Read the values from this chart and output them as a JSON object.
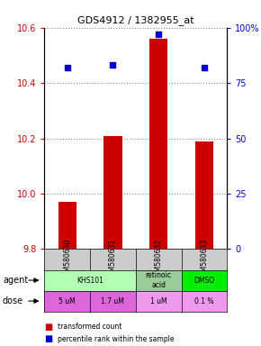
{
  "title": "GDS4912 / 1382955_at",
  "samples": [
    "GSM580630",
    "GSM580631",
    "GSM580632",
    "GSM580633"
  ],
  "bar_values": [
    9.97,
    10.21,
    10.56,
    10.19
  ],
  "percentile_values": [
    82,
    83,
    97,
    82
  ],
  "ymin": 9.8,
  "ymax": 10.6,
  "y_ticks": [
    9.8,
    10.0,
    10.2,
    10.4,
    10.6
  ],
  "y_right_ticks": [
    0,
    25,
    50,
    75,
    100
  ],
  "y_right_labels": [
    "0",
    "25",
    "50",
    "75",
    "100%"
  ],
  "bar_color": "#cc0000",
  "dot_color": "#0000cc",
  "agent_row": [
    {
      "label": "KHS101",
      "span": 2,
      "color": "#b3ffb3"
    },
    {
      "label": "retinoic\nacid",
      "span": 1,
      "color": "#99cc99"
    },
    {
      "label": "DMSO",
      "span": 1,
      "color": "#00ee00"
    }
  ],
  "dose_row": [
    {
      "label": "5 uM",
      "color": "#dd66dd"
    },
    {
      "label": "1.7 uM",
      "color": "#dd66dd"
    },
    {
      "label": "1 uM",
      "color": "#ee99ee"
    },
    {
      "label": "0.1 %",
      "color": "#ee99ee"
    }
  ],
  "legend_bar_label": "transformed count",
  "legend_dot_label": "percentile rank within the sample",
  "sample_box_color": "#cccccc",
  "grid_color": "#888888"
}
